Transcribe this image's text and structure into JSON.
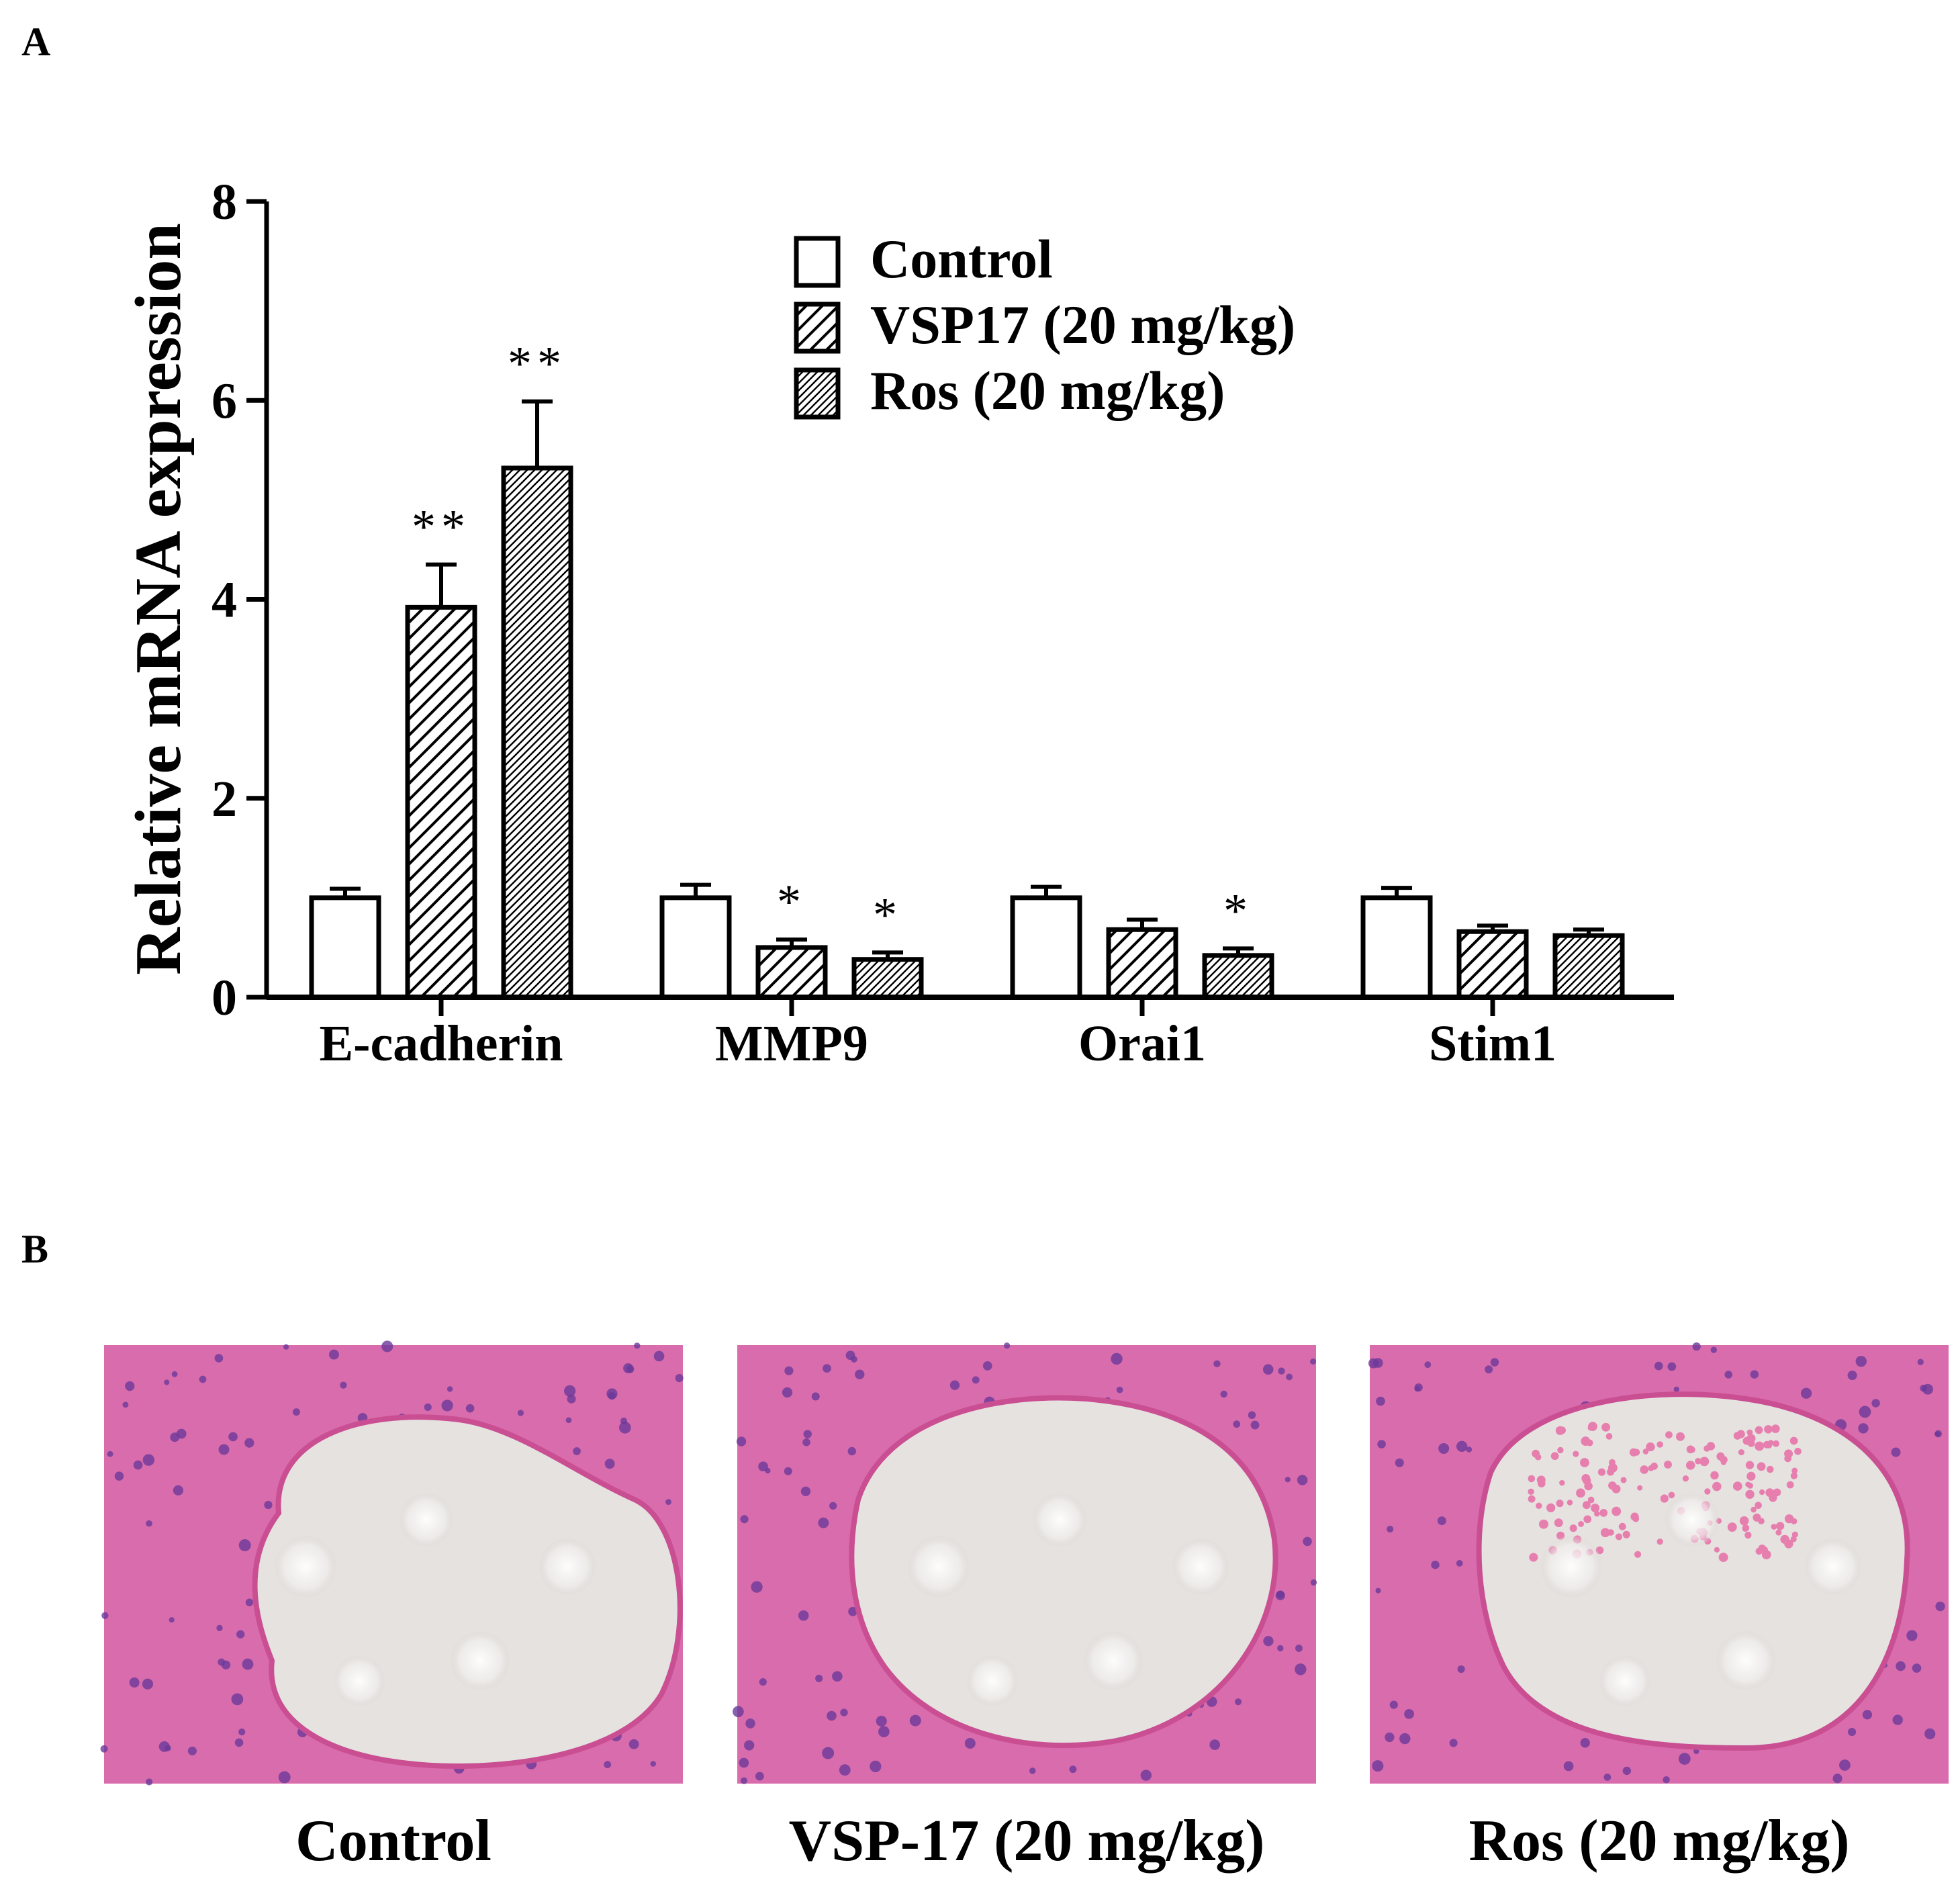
{
  "panels": {
    "a_letter": "A",
    "b_letter": "B"
  },
  "chart_data": {
    "type": "bar",
    "ylabel": "Relative mRNA expression",
    "xlabel": "",
    "ylim": [
      0,
      8
    ],
    "yticks": [
      0,
      2,
      4,
      6,
      8
    ],
    "categories": [
      "E-cadherin",
      "MMP9",
      "Orai1",
      "Stim1"
    ],
    "legend_position": "top-center",
    "series": [
      {
        "name": "Control",
        "pattern": "open",
        "values": [
          1.0,
          1.0,
          1.0,
          1.0
        ],
        "errors": [
          0.09,
          0.13,
          0.11,
          0.1
        ],
        "annotations": [
          "",
          "",
          "",
          ""
        ]
      },
      {
        "name": "VSP17 (20 mg/kg)",
        "pattern": "hatch-wide",
        "values": [
          3.92,
          0.5,
          0.68,
          0.66
        ],
        "errors": [
          0.43,
          0.08,
          0.1,
          0.06
        ],
        "annotations": [
          "**",
          "*",
          "",
          ""
        ]
      },
      {
        "name": "Ros (20 mg/kg)",
        "pattern": "hatch-dense",
        "values": [
          5.32,
          0.38,
          0.42,
          0.62
        ],
        "errors": [
          0.67,
          0.07,
          0.07,
          0.06
        ],
        "annotations": [
          "**",
          "*",
          "*",
          ""
        ]
      }
    ]
  },
  "histology": {
    "images": [
      {
        "label": "Control",
        "variant": "control"
      },
      {
        "label": "VSP-17 (20 mg/kg)",
        "variant": "vsp17"
      },
      {
        "label": "Ros (20 mg/kg)",
        "variant": "ros"
      }
    ],
    "colors": {
      "tissue": "#d96cac",
      "lumen": "#e6e2e0",
      "nuclei": "#6a3a9a"
    }
  }
}
